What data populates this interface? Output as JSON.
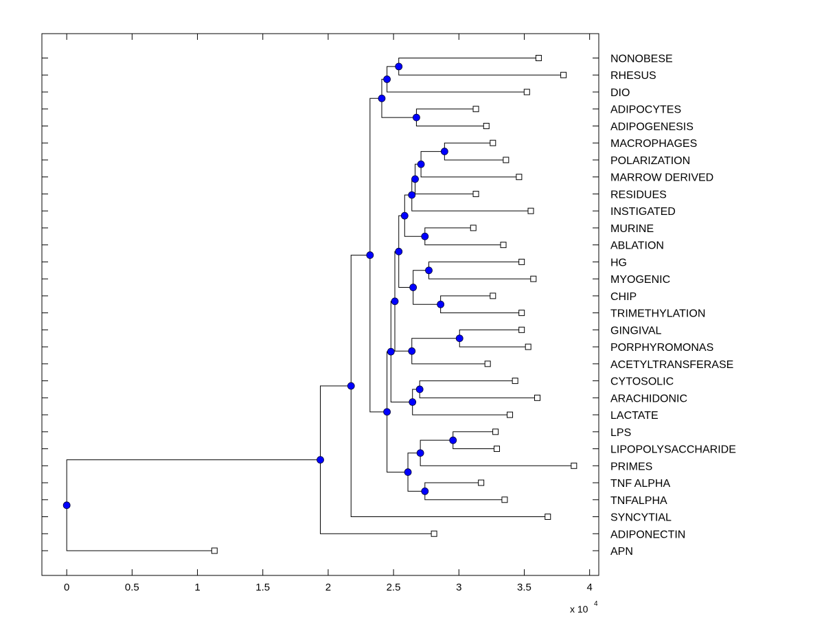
{
  "chart_data": {
    "type": "dendrogram",
    "title": "",
    "xlabel": "",
    "ylabel": "",
    "x_multiplier_label": "x 10",
    "x_multiplier_exponent": "4",
    "xlim": [
      -0.19,
      4.07
    ],
    "xticks": [
      0,
      0.5,
      1,
      1.5,
      2,
      2.5,
      3,
      3.5,
      4
    ],
    "xtick_labels": [
      "0",
      "0.5",
      "1",
      "1.5",
      "2",
      "2.5",
      "3",
      "3.5",
      "4"
    ],
    "grid": false,
    "node_color": "#0000ff",
    "line_color": "#000000",
    "leaves": [
      {
        "id": "L1",
        "label": "NONOBESE",
        "height": 3.61
      },
      {
        "id": "L2",
        "label": "RHESUS",
        "height": 3.8
      },
      {
        "id": "L3",
        "label": "DIO",
        "height": 3.52
      },
      {
        "id": "L4",
        "label": "ADIPOCYTES",
        "height": 3.13
      },
      {
        "id": "L5",
        "label": "ADIPOGENESIS",
        "height": 3.21
      },
      {
        "id": "L6",
        "label": "MACROPHAGES",
        "height": 3.26
      },
      {
        "id": "L7",
        "label": "POLARIZATION",
        "height": 3.36
      },
      {
        "id": "L8",
        "label": "MARROW DERIVED",
        "height": 3.46
      },
      {
        "id": "L9",
        "label": "RESIDUES",
        "height": 3.13
      },
      {
        "id": "L10",
        "label": "INSTIGATED",
        "height": 3.55
      },
      {
        "id": "L11",
        "label": "MURINE",
        "height": 3.11
      },
      {
        "id": "L12",
        "label": "ABLATION",
        "height": 3.34
      },
      {
        "id": "L13",
        "label": "HG",
        "height": 3.48
      },
      {
        "id": "L14",
        "label": "MYOGENIC",
        "height": 3.57
      },
      {
        "id": "L15",
        "label": "CHIP",
        "height": 3.26
      },
      {
        "id": "L16",
        "label": "TRIMETHYLATION",
        "height": 3.48
      },
      {
        "id": "L17",
        "label": "GINGIVAL",
        "height": 3.48
      },
      {
        "id": "L18",
        "label": "PORPHYROMONAS",
        "height": 3.53
      },
      {
        "id": "L19",
        "label": "ACETYLTRANSFERASE",
        "height": 3.22
      },
      {
        "id": "L20",
        "label": "CYTOSOLIC",
        "height": 3.43
      },
      {
        "id": "L21",
        "label": "ARACHIDONIC",
        "height": 3.6
      },
      {
        "id": "L22",
        "label": "LACTATE",
        "height": 3.39
      },
      {
        "id": "L23",
        "label": "LPS",
        "height": 3.28
      },
      {
        "id": "L24",
        "label": "LIPOPOLYSACCHARIDE",
        "height": 3.29
      },
      {
        "id": "L25",
        "label": "PRIMES",
        "height": 3.88
      },
      {
        "id": "L26",
        "label": "TNF ALPHA",
        "height": 3.17
      },
      {
        "id": "L27",
        "label": "TNFALPHA",
        "height": 3.35
      },
      {
        "id": "L28",
        "label": "SYNCYTIAL",
        "height": 3.68
      },
      {
        "id": "L29",
        "label": "ADIPONECTIN",
        "height": 2.81
      },
      {
        "id": "L30",
        "label": "APN",
        "height": 1.13
      }
    ],
    "merges": [
      {
        "id": "N1",
        "children": [
          "L1",
          "L2"
        ],
        "height": 2.54
      },
      {
        "id": "N2",
        "children": [
          "N1",
          "L3"
        ],
        "height": 2.45
      },
      {
        "id": "N3",
        "children": [
          "L4",
          "L5"
        ],
        "height": 2.675
      },
      {
        "id": "N4",
        "children": [
          "N2",
          "N3"
        ],
        "height": 2.41
      },
      {
        "id": "N5",
        "children": [
          "L6",
          "L7"
        ],
        "height": 2.89
      },
      {
        "id": "N6",
        "children": [
          "N5",
          "L8"
        ],
        "height": 2.71
      },
      {
        "id": "N7",
        "children": [
          "N6",
          "L9"
        ],
        "height": 2.665
      },
      {
        "id": "N8",
        "children": [
          "N7",
          "L10"
        ],
        "height": 2.64
      },
      {
        "id": "N9",
        "children": [
          "L11",
          "L12"
        ],
        "height": 2.74
      },
      {
        "id": "N10",
        "children": [
          "N8",
          "N9"
        ],
        "height": 2.585
      },
      {
        "id": "N11",
        "children": [
          "L13",
          "L14"
        ],
        "height": 2.77
      },
      {
        "id": "N12",
        "children": [
          "L15",
          "L16"
        ],
        "height": 2.86
      },
      {
        "id": "N13",
        "children": [
          "N11",
          "N12"
        ],
        "height": 2.65
      },
      {
        "id": "N14",
        "children": [
          "N10",
          "N13"
        ],
        "height": 2.54
      },
      {
        "id": "N15",
        "children": [
          "L17",
          "L18"
        ],
        "height": 3.005
      },
      {
        "id": "N16",
        "children": [
          "N15",
          "L19"
        ],
        "height": 2.64
      },
      {
        "id": "N17",
        "children": [
          "N14",
          "N16"
        ],
        "height": 2.51
      },
      {
        "id": "N18",
        "children": [
          "L20",
          "L21"
        ],
        "height": 2.7
      },
      {
        "id": "N19",
        "children": [
          "N18",
          "L22"
        ],
        "height": 2.645
      },
      {
        "id": "N20",
        "children": [
          "N17",
          "N19"
        ],
        "height": 2.48
      },
      {
        "id": "N21",
        "children": [
          "L23",
          "L24"
        ],
        "height": 2.955
      },
      {
        "id": "N22",
        "children": [
          "N21",
          "L25"
        ],
        "height": 2.705
      },
      {
        "id": "N23",
        "children": [
          "L26",
          "L27"
        ],
        "height": 2.74
      },
      {
        "id": "N24",
        "children": [
          "N22",
          "N23"
        ],
        "height": 2.61
      },
      {
        "id": "N25",
        "children": [
          "N20",
          "N24"
        ],
        "height": 2.45
      },
      {
        "id": "N26",
        "children": [
          "N4",
          "N25"
        ],
        "height": 2.32
      },
      {
        "id": "N27",
        "children": [
          "N26",
          "L28"
        ],
        "height": 2.175
      },
      {
        "id": "N28",
        "children": [
          "N27",
          "L29"
        ],
        "height": 1.94
      },
      {
        "id": "N29",
        "children": [
          "N28",
          "L30"
        ],
        "height": 0.0
      }
    ]
  }
}
